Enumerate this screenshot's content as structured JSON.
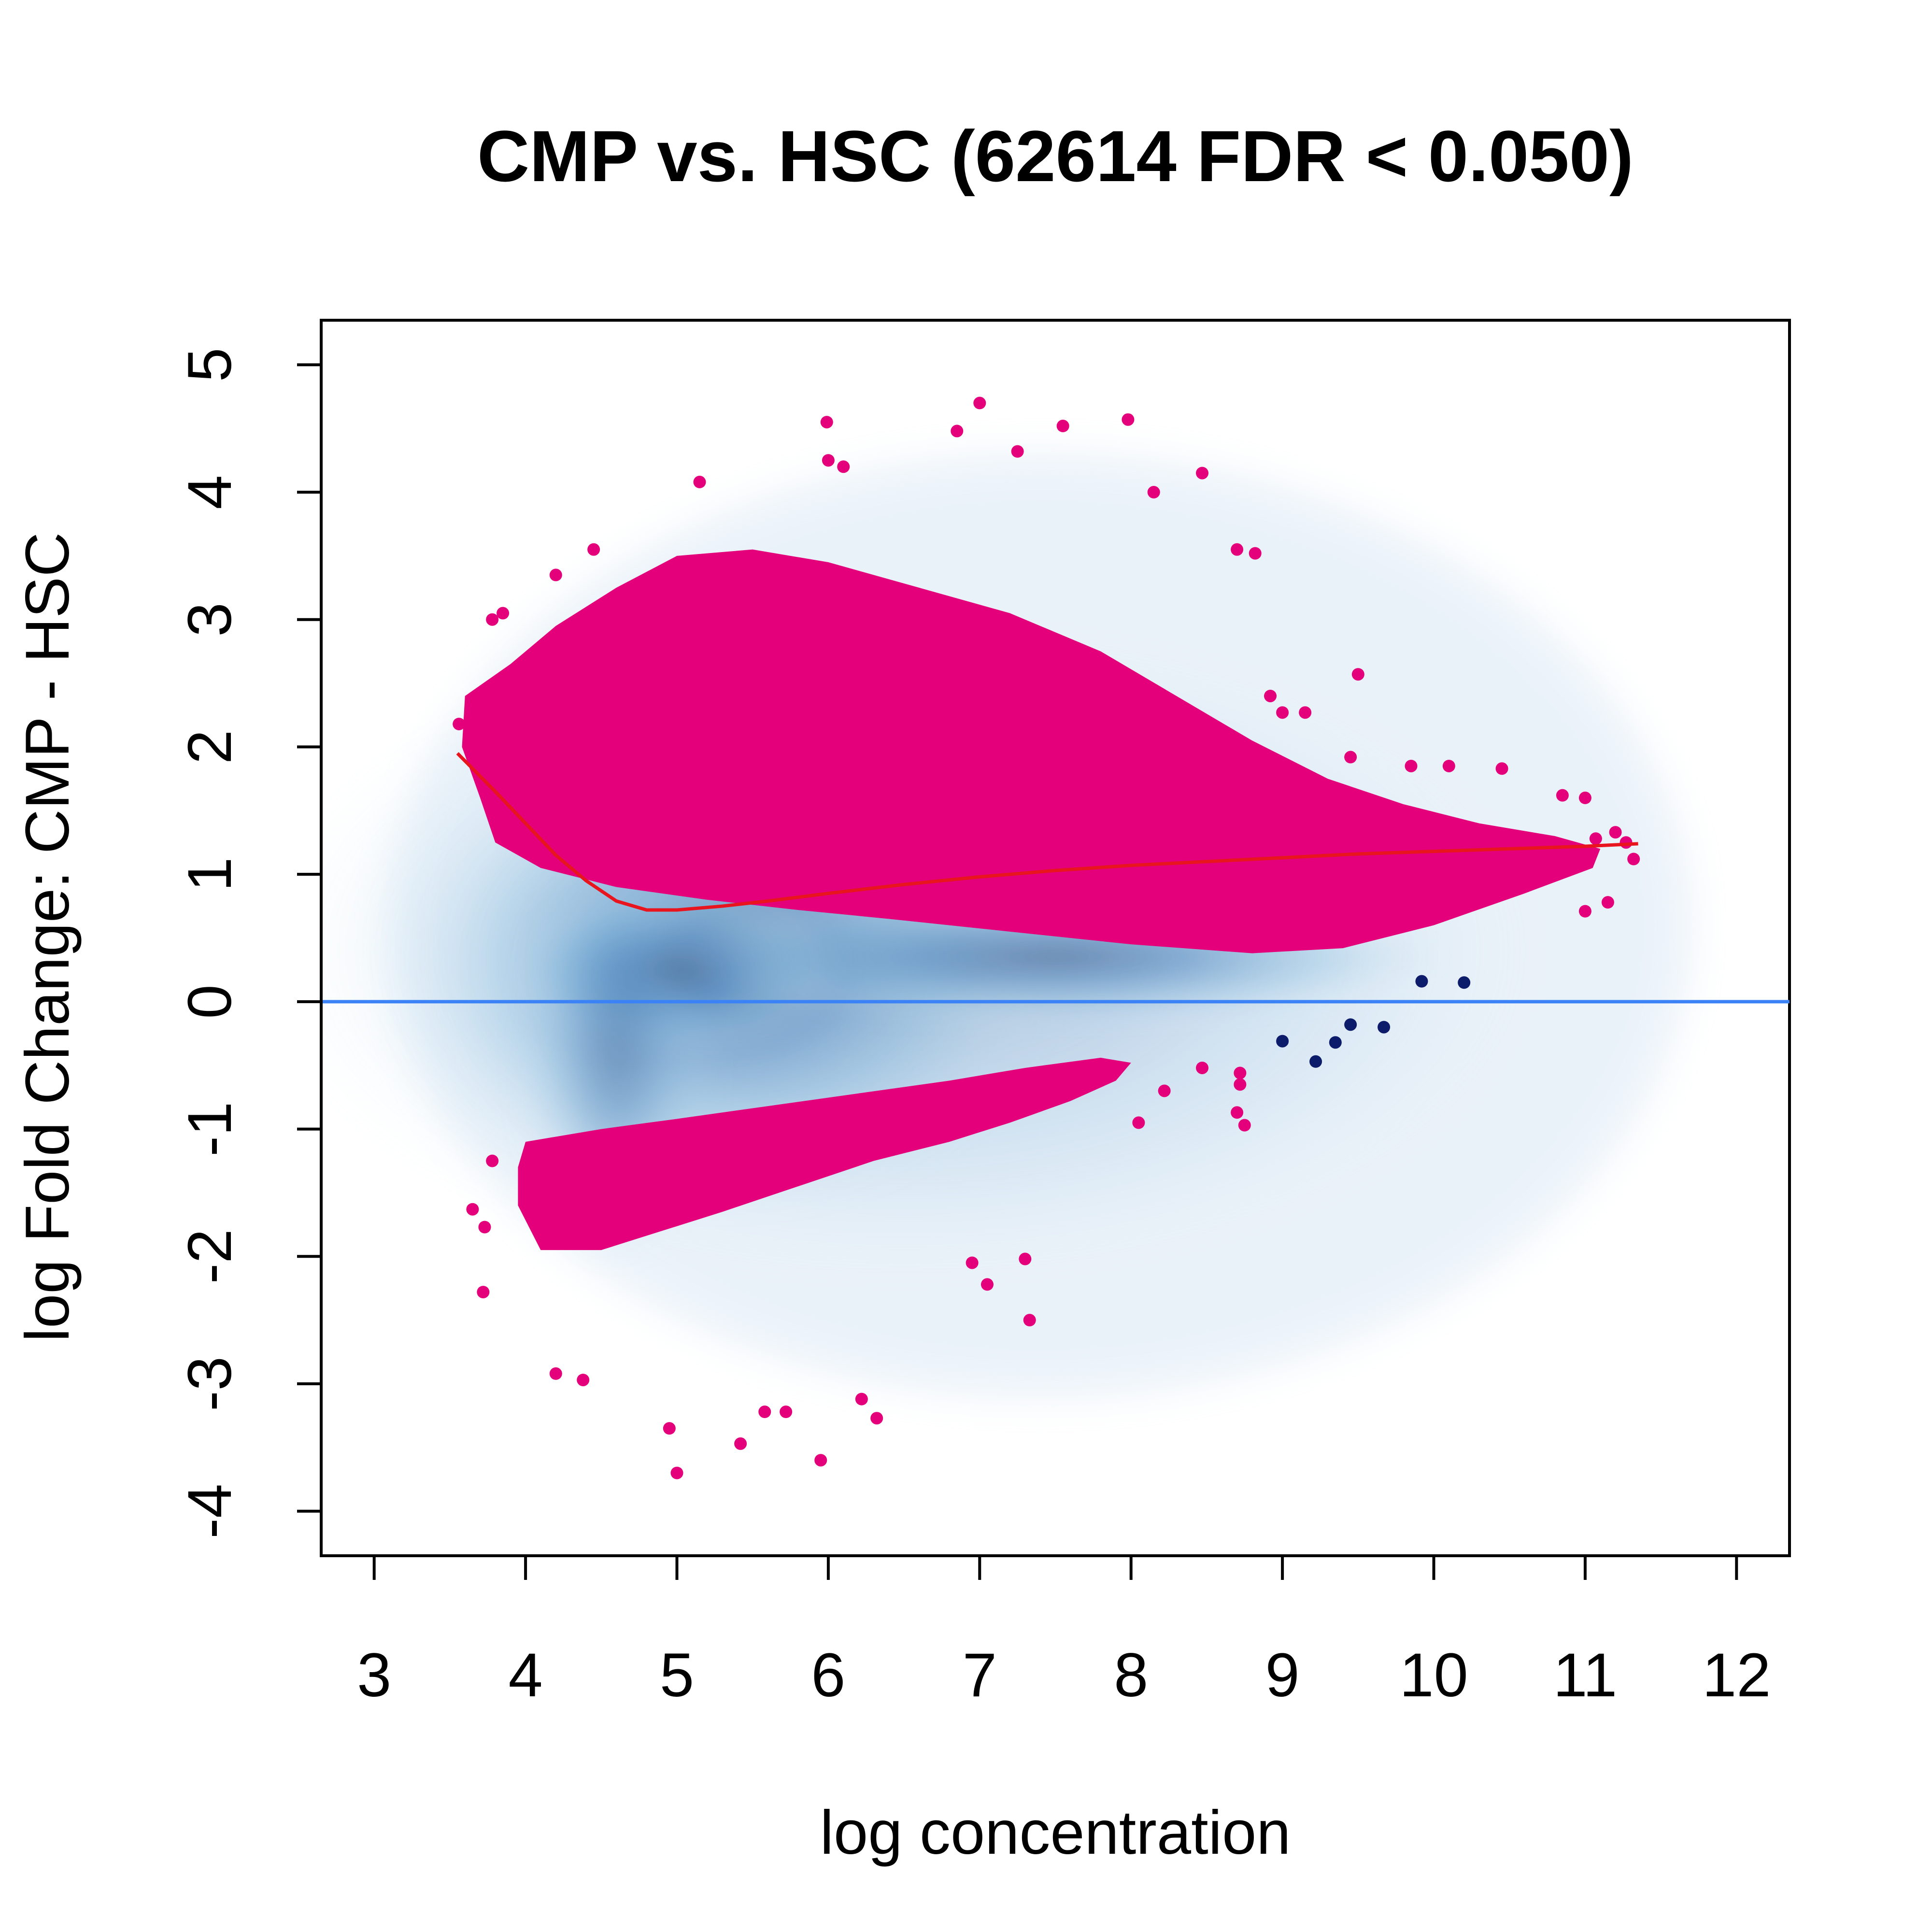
{
  "chart_data": {
    "type": "scatter",
    "title": "CMP vs. HSC (62614 FDR < 0.050)",
    "xlabel": "log concentration",
    "ylabel": "log Fold Change: CMP - HSC",
    "xlim": [
      2.65,
      12.35
    ],
    "ylim": [
      -4.35,
      5.35
    ],
    "x_ticks": [
      3,
      4,
      5,
      6,
      7,
      8,
      9,
      10,
      11,
      12
    ],
    "y_ticks": [
      -4,
      -3,
      -2,
      -1,
      0,
      1,
      2,
      3,
      4,
      5
    ],
    "grid": false,
    "legend": "none",
    "colors": {
      "significant": "#E3007A",
      "non_significant": "#0D1B6B",
      "density_dark": "#08306B",
      "density_light": "#C6DBEF",
      "loess": "#E8141E",
      "zero_line": "#3B82F6"
    },
    "series": [
      {
        "kind": "density",
        "note_values": "smoothed density of all sites",
        "x_range": [
          3.3,
          11.7
        ],
        "y_range": [
          -3.9,
          4.8
        ],
        "peak": [
          5.0,
          0.2
        ]
      },
      {
        "kind": "points_significant_up",
        "points": [
          [
            5.99,
            4.55
          ],
          [
            7.0,
            4.7
          ],
          [
            7.98,
            4.57
          ],
          [
            7.55,
            4.52
          ],
          [
            6.85,
            4.48
          ],
          [
            7.25,
            4.32
          ],
          [
            6.0,
            4.25
          ],
          [
            6.1,
            4.2
          ],
          [
            8.47,
            4.15
          ],
          [
            8.15,
            4.0
          ],
          [
            5.15,
            4.08
          ],
          [
            9.5,
            2.57
          ],
          [
            8.7,
            3.55
          ],
          [
            8.82,
            3.52
          ],
          [
            4.45,
            3.55
          ],
          [
            4.2,
            3.35
          ],
          [
            3.78,
            3.0
          ],
          [
            3.85,
            3.05
          ],
          [
            10.45,
            1.83
          ],
          [
            10.85,
            1.62
          ],
          [
            11.0,
            1.6
          ],
          [
            11.2,
            1.33
          ],
          [
            11.32,
            1.12
          ],
          [
            11.27,
            1.25
          ],
          [
            11.07,
            1.28
          ],
          [
            11.15,
            0.78
          ],
          [
            11.0,
            0.71
          ],
          [
            10.1,
            1.85
          ],
          [
            9.85,
            1.85
          ],
          [
            9.45,
            1.92
          ],
          [
            9.15,
            2.27
          ],
          [
            9.0,
            2.27
          ],
          [
            8.92,
            2.4
          ],
          [
            3.56,
            2.18
          ]
        ]
      },
      {
        "kind": "points_significant_down",
        "points": [
          [
            5.0,
            -3.7
          ],
          [
            5.95,
            -3.6
          ],
          [
            5.42,
            -3.47
          ],
          [
            6.32,
            -3.27
          ],
          [
            6.22,
            -3.12
          ],
          [
            5.58,
            -3.22
          ],
          [
            5.72,
            -3.22
          ],
          [
            4.2,
            -2.92
          ],
          [
            4.38,
            -2.97
          ],
          [
            4.95,
            -3.35
          ],
          [
            7.33,
            -2.5
          ],
          [
            6.95,
            -2.05
          ],
          [
            7.3,
            -2.02
          ],
          [
            7.05,
            -2.22
          ],
          [
            3.72,
            -2.28
          ],
          [
            3.65,
            -1.63
          ],
          [
            3.73,
            -1.77
          ],
          [
            3.78,
            -1.25
          ],
          [
            8.05,
            -0.95
          ],
          [
            8.22,
            -0.7
          ],
          [
            8.47,
            -0.52
          ],
          [
            8.72,
            -0.56
          ],
          [
            8.72,
            -0.65
          ],
          [
            8.7,
            -0.87
          ],
          [
            8.75,
            -0.97
          ]
        ]
      },
      {
        "kind": "points_non_significant",
        "points": [
          [
            9.92,
            0.16
          ],
          [
            10.2,
            0.15
          ],
          [
            9.0,
            -0.31
          ],
          [
            9.45,
            -0.18
          ],
          [
            9.67,
            -0.2
          ],
          [
            9.35,
            -0.32
          ],
          [
            9.22,
            -0.47
          ]
        ]
      },
      {
        "kind": "loess",
        "points": [
          [
            3.55,
            1.95
          ],
          [
            3.8,
            1.65
          ],
          [
            4.0,
            1.4
          ],
          [
            4.2,
            1.15
          ],
          [
            4.4,
            0.95
          ],
          [
            4.6,
            0.79
          ],
          [
            4.8,
            0.72
          ],
          [
            5.0,
            0.72
          ],
          [
            5.3,
            0.75
          ],
          [
            5.6,
            0.79
          ],
          [
            6.0,
            0.85
          ],
          [
            6.5,
            0.92
          ],
          [
            7.0,
            0.98
          ],
          [
            7.5,
            1.03
          ],
          [
            8.0,
            1.07
          ],
          [
            8.5,
            1.1
          ],
          [
            9.0,
            1.13
          ],
          [
            9.5,
            1.16
          ],
          [
            10.0,
            1.18
          ],
          [
            10.5,
            1.2
          ],
          [
            11.0,
            1.22
          ],
          [
            11.35,
            1.24
          ]
        ]
      },
      {
        "kind": "reference_line",
        "y": 0
      }
    ]
  }
}
